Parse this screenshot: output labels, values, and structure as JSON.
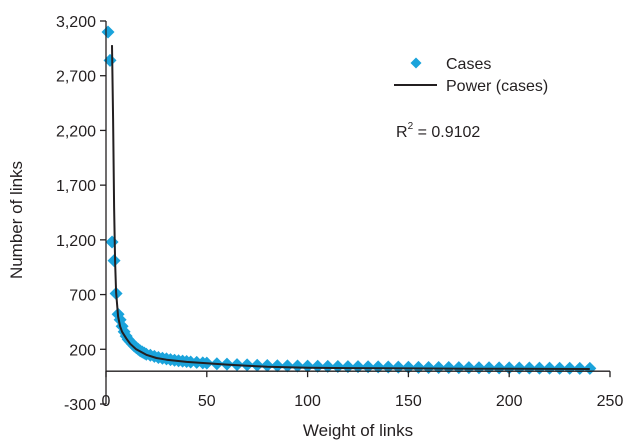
{
  "chart_data": {
    "type": "scatter",
    "title": "",
    "xlabel": "Weight of links",
    "ylabel": "Number of links",
    "xlim": [
      0,
      250
    ],
    "ylim": [
      -300,
      3200
    ],
    "x_ticks": [
      0,
      50,
      100,
      150,
      200,
      250
    ],
    "x_tick_labels": [
      "0",
      "50",
      "100",
      "150",
      "200",
      "250"
    ],
    "y_ticks": [
      -300,
      200,
      700,
      1200,
      1700,
      2200,
      2700,
      3200
    ],
    "y_tick_labels": [
      "-300",
      "200",
      "700",
      "1,200",
      "1,700",
      "2,200",
      "2,700",
      "3,200"
    ],
    "grid": false,
    "legend_position": "top-right",
    "annotation": {
      "r_label": "R",
      "r_sup": "2",
      "r_value": " = 0.9102"
    },
    "colors": {
      "cases": "#1aa3db",
      "trend": "#231f20",
      "axis": "#231f20"
    },
    "series": [
      {
        "name": "Cases",
        "style": "diamond-marker",
        "x": [
          1,
          2,
          3,
          4,
          5,
          6,
          7,
          8,
          9,
          10,
          11,
          12,
          13,
          14,
          15,
          16,
          17,
          18,
          19,
          20,
          22,
          24,
          26,
          28,
          30,
          32,
          34,
          36,
          38,
          40,
          42,
          45,
          48,
          50,
          55,
          60,
          65,
          70,
          75,
          80,
          85,
          90,
          95,
          100,
          105,
          110,
          115,
          120,
          125,
          130,
          135,
          140,
          145,
          150,
          155,
          160,
          165,
          170,
          175,
          180,
          185,
          190,
          195,
          200,
          205,
          210,
          215,
          220,
          225,
          230,
          235,
          240
        ],
        "y": [
          3100,
          2840,
          1180,
          1010,
          710,
          520,
          470,
          410,
          360,
          320,
          290,
          270,
          250,
          230,
          215,
          200,
          185,
          175,
          165,
          155,
          145,
          135,
          125,
          118,
          112,
          106,
          100,
          95,
          92,
          88,
          84,
          80,
          76,
          73,
          68,
          64,
          60,
          57,
          54,
          52,
          50,
          48,
          47,
          46,
          45,
          44,
          43,
          42,
          41,
          40,
          39,
          38,
          37,
          36,
          35,
          34,
          33,
          33,
          32,
          32,
          31,
          31,
          30,
          30,
          29,
          29,
          28,
          28,
          27,
          27,
          26,
          26
        ]
      },
      {
        "name": "Power (cases)",
        "style": "line",
        "x": [
          3,
          3.5,
          4,
          4.5,
          5,
          6,
          7,
          8,
          10,
          12,
          15,
          20,
          25,
          30,
          40,
          50,
          60,
          70,
          80,
          100,
          120,
          150,
          180,
          200,
          220,
          240
        ],
        "y": [
          2980,
          2300,
          1500,
          1000,
          720,
          500,
          410,
          360,
          300,
          250,
          200,
          150,
          120,
          105,
          85,
          72,
          60,
          50,
          40,
          32,
          28,
          25,
          23,
          22,
          21,
          20
        ]
      }
    ]
  }
}
